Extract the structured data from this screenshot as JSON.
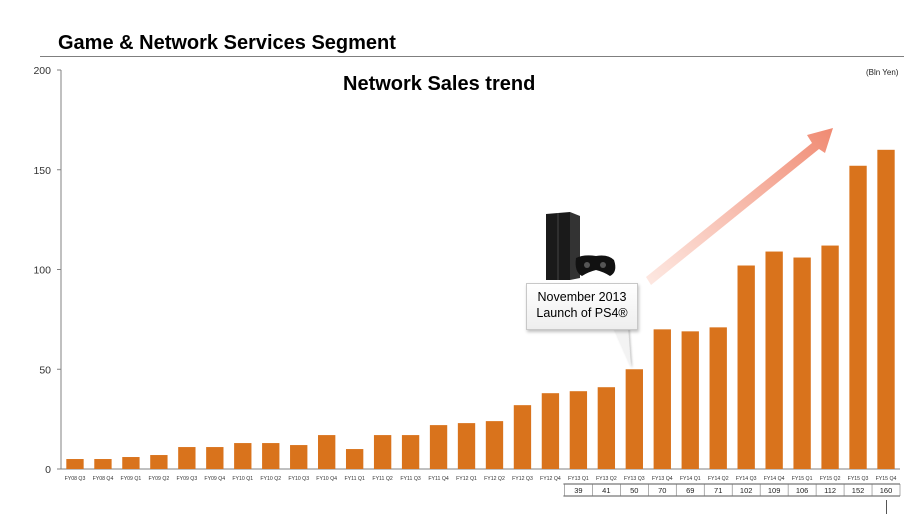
{
  "header": {
    "segment_title": "Game & Network Services Segment",
    "unit": "(Bln Yen)"
  },
  "annotation": {
    "line1": "November 2013",
    "line2": "Launch of PS4®",
    "icon": "game-console-icon"
  },
  "colors": {
    "bar": "#d9731c",
    "arrow": "#f4a08a",
    "axis": "#808080"
  },
  "chart_data": {
    "type": "bar",
    "title": "Network Sales trend",
    "ylim": [
      0,
      200
    ],
    "yticks": [
      0,
      50,
      100,
      150,
      200
    ],
    "grid": false,
    "categories": [
      "FY08 Q3",
      "FY08 Q4",
      "FY09 Q1",
      "FY09 Q2",
      "FY09 Q3",
      "FY09 Q4",
      "FY10 Q1",
      "FY10 Q2",
      "FY10 Q3",
      "FY10 Q4",
      "FY11 Q1",
      "FY11 Q2",
      "FY11 Q3",
      "FY11 Q4",
      "FY12 Q1",
      "FY12 Q2",
      "FY12 Q3",
      "FY12 Q4",
      "FY13 Q1",
      "FY13 Q2",
      "FY13 Q3",
      "FY13 Q4",
      "FY14 Q1",
      "FY14 Q2",
      "FY14 Q3",
      "FY14 Q4",
      "FY15 Q1",
      "FY15 Q2",
      "FY15 Q3",
      "FY15 Q4"
    ],
    "values": [
      5,
      5,
      6,
      7,
      11,
      11,
      13,
      13,
      12,
      17,
      10,
      17,
      17,
      22,
      23,
      24,
      32,
      38,
      39,
      41,
      50,
      70,
      69,
      71,
      102,
      109,
      106,
      112,
      152,
      160
    ],
    "table_start_index": 18,
    "table_values": [
      "39",
      "41",
      "50",
      "70",
      "69",
      "71",
      "102",
      "109",
      "106",
      "112",
      "152",
      "160"
    ]
  }
}
